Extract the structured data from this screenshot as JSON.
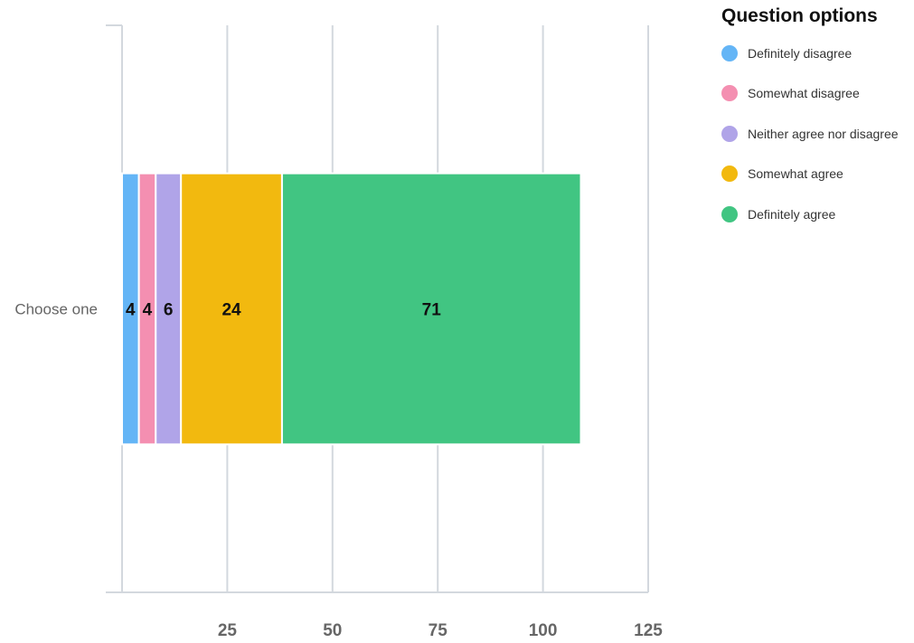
{
  "chart_data": {
    "type": "bar",
    "orientation": "horizontal",
    "stacked": true,
    "categories": [
      "Choose one"
    ],
    "series": [
      {
        "name": "Definitely disagree",
        "values": [
          4
        ],
        "color": "#64b5f6"
      },
      {
        "name": "Somewhat disagree",
        "values": [
          4
        ],
        "color": "#f48fb1"
      },
      {
        "name": "Neither agree nor disagree",
        "values": [
          6
        ],
        "color": "#b0a4e8"
      },
      {
        "name": "Somewhat agree",
        "values": [
          24
        ],
        "color": "#f2b90f"
      },
      {
        "name": "Definitely agree",
        "values": [
          71
        ],
        "color": "#41c582"
      }
    ],
    "x_ticks": [
      25,
      50,
      75,
      100,
      125
    ],
    "xlim": [
      0,
      125
    ],
    "grid": true,
    "legend": {
      "title": "Question options",
      "position": "right"
    }
  }
}
